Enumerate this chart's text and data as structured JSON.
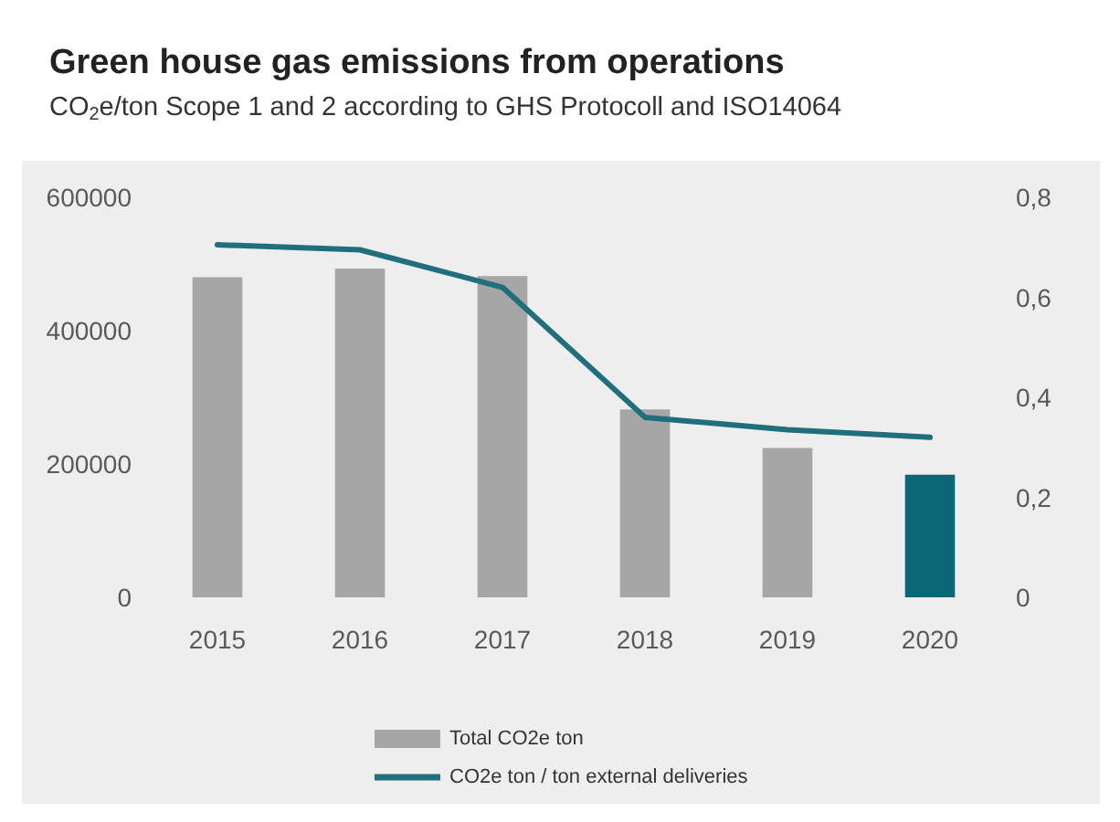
{
  "chart_data": {
    "type": "bar",
    "title": "Green house gas emissions from operations",
    "subtitle": "CO$_{2}$e/ton Scope 1 and 2 according to GHS Protocoll and ISO14064",
    "categories": [
      "2015",
      "2016",
      "2017",
      "2018",
      "2019",
      "2020"
    ],
    "series": [
      {
        "name": "Total CO2e ton",
        "color": "#a6a6a6",
        "colors": [
          "#a6a6a6",
          "#a6a6a6",
          "#a6a6a6",
          "#a6a6a6",
          "#a6a6a6",
          "#0b6774"
        ],
        "values": [
          480000,
          493000,
          482000,
          282000,
          224000,
          184000
        ]
      },
      {
        "name": "CO2e ton / ton external deliveries",
        "type": "line",
        "axis": "y2",
        "color": "#1f6f7c",
        "values": [
          0.705,
          0.695,
          0.62,
          0.36,
          0.335,
          0.32
        ]
      }
    ],
    "ylim": [
      0,
      600000
    ],
    "yticks": [
      0,
      200000,
      400000,
      600000
    ],
    "y2lim": [
      0,
      0.8
    ],
    "y2ticks": [
      {
        "value": 0,
        "label": "0"
      },
      {
        "value": 0.2,
        "label": "0,2"
      },
      {
        "value": 0.4,
        "label": "0,4"
      },
      {
        "value": 0.6,
        "label": "0,6"
      },
      {
        "value": 0.8,
        "label": "0,8"
      }
    ],
    "legend": "bottom",
    "grid": false,
    "marker": "none",
    "line_style": "solid"
  }
}
